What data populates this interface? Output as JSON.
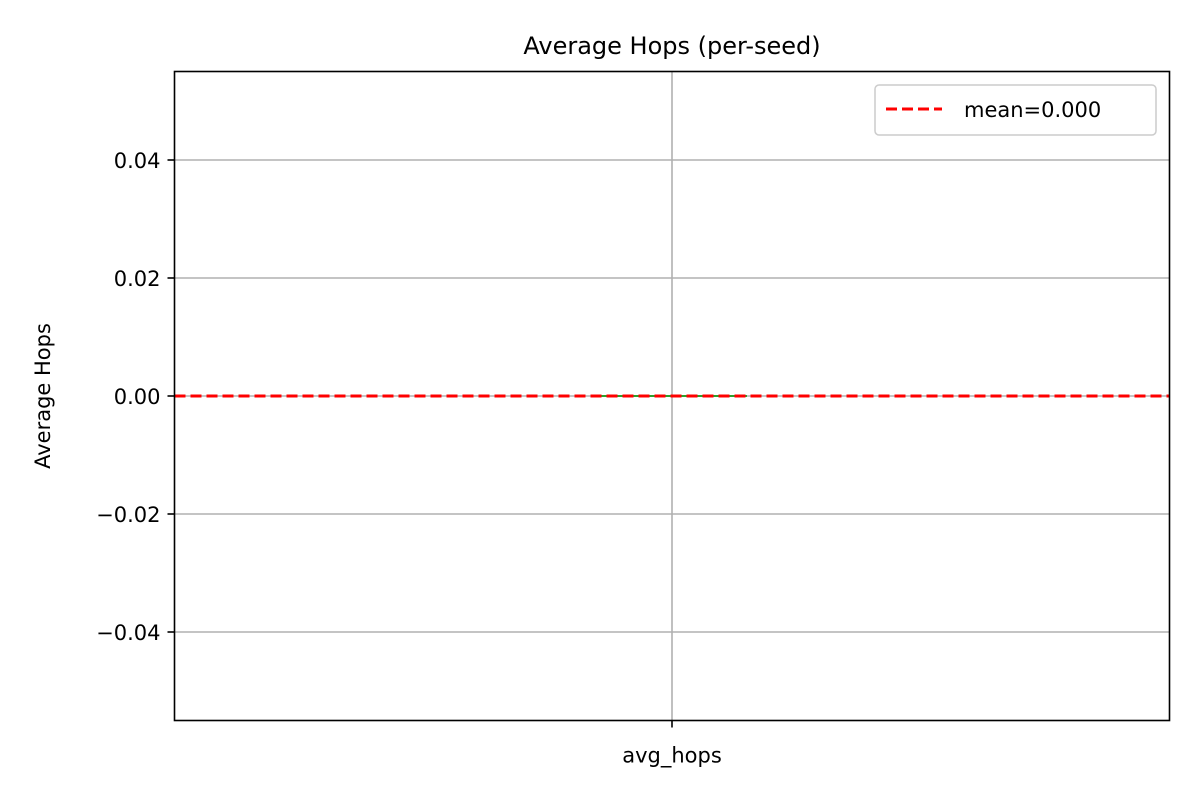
{
  "chart_data": {
    "type": "box",
    "title": "Average Hops (per-seed)",
    "xlabel": "",
    "ylabel": "Average Hops",
    "categories": [
      "avg_hops"
    ],
    "values": [
      0.0
    ],
    "ylim": [
      -0.055,
      0.055
    ],
    "yticks": [
      0.04,
      0.02,
      0.0,
      -0.02,
      -0.04
    ],
    "ytick_labels": [
      "0.04",
      "0.02",
      "0.00",
      "−0.02",
      "−0.04"
    ],
    "grid": true,
    "reference_line": {
      "value": 0.0,
      "label": "mean=0.000",
      "color": "#ff0000",
      "style": "dashed"
    },
    "median_color": "#2ca02c",
    "legend": {
      "placement": "top-right",
      "entries": [
        "mean=0.000"
      ]
    }
  }
}
